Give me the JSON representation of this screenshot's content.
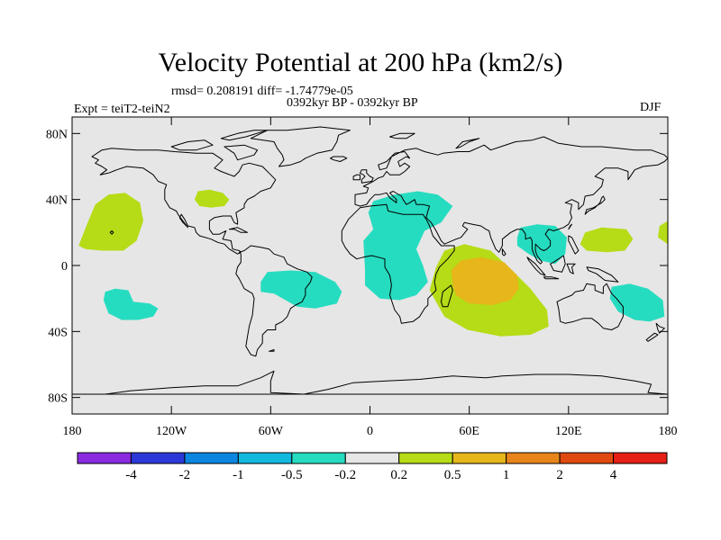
{
  "title": "Velocity Potential at 200 hPa (km2/s)",
  "stats_line": "rmsd= 0.208191  diff= -1.74779e-05",
  "period_line": "0392kyr BP - 0392kyr BP",
  "experiment_label": "Expt = teiT2-teiN2",
  "season_label": "DJF",
  "chart_data": {
    "type": "filled-contour-map",
    "variable": "Velocity Potential at 200 hPa difference",
    "units": "km2/s",
    "xlim": [
      -180,
      180
    ],
    "ylim": [
      -90,
      90
    ],
    "x_ticks": [
      {
        "value": -180,
        "label": "180"
      },
      {
        "value": -120,
        "label": "120W"
      },
      {
        "value": -60,
        "label": "60W"
      },
      {
        "value": 0,
        "label": "0"
      },
      {
        "value": 60,
        "label": "60E"
      },
      {
        "value": 120,
        "label": "120E"
      },
      {
        "value": 180,
        "label": "180"
      }
    ],
    "y_ticks": [
      {
        "value": 80,
        "label": "80N"
      },
      {
        "value": 40,
        "label": "40N"
      },
      {
        "value": 0,
        "label": "0"
      },
      {
        "value": -40,
        "label": "40S"
      },
      {
        "value": -80,
        "label": "80S"
      }
    ],
    "levels": [
      "-4",
      "-2",
      "-1",
      "-0.5",
      "-0.2",
      "0.2",
      "0.5",
      "1",
      "2",
      "4"
    ],
    "colors": [
      "#8a2be2",
      "#2c39d8",
      "#0c86e0",
      "#13b8df",
      "#26dcc0",
      "#e6e6e6",
      "#b5dc16",
      "#e6b61b",
      "#e8851a",
      "#e04a10",
      "#e61f16"
    ],
    "regions": [
      {
        "name": "central-pacific-positive",
        "class": "0.2 to 0.5",
        "lon_range": [
          -178,
          -138
        ],
        "lat_range": [
          10,
          44
        ]
      },
      {
        "name": "north-america-positive",
        "class": "0.2 to 0.5",
        "lon_range": [
          -107,
          -85
        ],
        "lat_range": [
          35,
          46
        ]
      },
      {
        "name": "south-pacific-negative",
        "class": "-0.5 to -0.2",
        "lon_range": [
          -160,
          -128
        ],
        "lat_range": [
          -32,
          -15
        ]
      },
      {
        "name": "south-america-negative",
        "class": "-0.5 to -0.2",
        "lon_range": [
          -67,
          -15
        ],
        "lat_range": [
          -25,
          -3
        ]
      },
      {
        "name": "africa-mediterranean-negative",
        "class": "-0.5 to -0.2",
        "lon_range": [
          -5,
          50
        ],
        "lat_range": [
          -20,
          45
        ]
      },
      {
        "name": "indian-ocean-positive",
        "class": "0.2 to 1",
        "lon_range": [
          35,
          110
        ],
        "lat_range": [
          -42,
          12
        ]
      },
      {
        "name": "indian-ocean-core",
        "class": "0.5 to 1",
        "lon_range": [
          48,
          90
        ],
        "lat_range": [
          -23,
          4
        ]
      },
      {
        "name": "southeast-asia-negative",
        "class": "-0.5 to -0.2",
        "lon_range": [
          88,
          119
        ],
        "lat_range": [
          0,
          25
        ]
      },
      {
        "name": "west-pacific-positive",
        "class": "0.2 to 0.5",
        "lon_range": [
          127,
          159
        ],
        "lat_range": [
          8,
          23
        ]
      },
      {
        "name": "eastern-australia-negative",
        "class": "-0.5 to -0.2",
        "lon_range": [
          145,
          178
        ],
        "lat_range": [
          -33,
          -11
        ]
      },
      {
        "name": "dateline-positive-edge",
        "class": "0.2 to 0.5",
        "lon_range": [
          174,
          180
        ],
        "lat_range": [
          13,
          26
        ]
      }
    ]
  }
}
